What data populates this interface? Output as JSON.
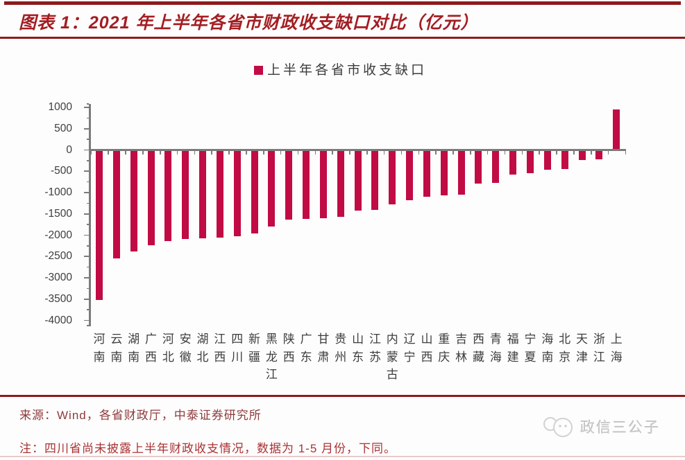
{
  "header": {
    "title": "图表 1：2021 年上半年各省市财政收支缺口对比（亿元）"
  },
  "legend": {
    "label": "上半年各省市收支缺口",
    "marker_color": "#C10B44"
  },
  "chart_data": {
    "type": "bar",
    "title": "2021 年上半年各省市财政收支缺口对比（亿元）",
    "legend": [
      "上半年各省市收支缺口"
    ],
    "categories": [
      "河南",
      "云南",
      "湖南",
      "广西",
      "河北",
      "安徽",
      "湖北",
      "江西",
      "四川",
      "新疆",
      "黑龙江",
      "陕西",
      "广东",
      "甘肃",
      "贵州",
      "山东",
      "江苏",
      "内蒙古",
      "辽宁",
      "山西",
      "重庆",
      "吉林",
      "西藏",
      "青海",
      "福建",
      "宁夏",
      "海南",
      "北京",
      "天津",
      "浙江",
      "上海"
    ],
    "values": [
      -3520,
      -2550,
      -2380,
      -2230,
      -2140,
      -2085,
      -2075,
      -2065,
      -2030,
      -1960,
      -1800,
      -1640,
      -1615,
      -1600,
      -1570,
      -1430,
      -1410,
      -1280,
      -1180,
      -1100,
      -1065,
      -1050,
      -790,
      -780,
      -575,
      -540,
      -470,
      -455,
      -230,
      -215,
      950
    ],
    "unit": "亿元",
    "xlabel": "",
    "ylabel": "",
    "ylim": [
      -4000,
      1000
    ],
    "yticks": [
      1000,
      500,
      0,
      -500,
      -1000,
      -1500,
      -2000,
      -2500,
      -3000,
      -3500,
      -4000
    ],
    "ytick_minor_interval": 250,
    "grid": false,
    "legend_position": "top-center",
    "bar_color": "#C10B44",
    "axis_color": "#7B7B7B",
    "tick_label_color": "#3D3D3D"
  },
  "footer": {
    "source": "来源：Wind，各省财政厅，中泰证券研究所",
    "note": "注：四川省尚未披露上半年财政收支情况，数据为 1-5 月份，下同。",
    "watermark": "政信三公子"
  },
  "colors": {
    "accent_rule": "#8E1A1C",
    "title": "#A31E23",
    "bar": "#C10B44",
    "axis": "#7B7B7B"
  }
}
